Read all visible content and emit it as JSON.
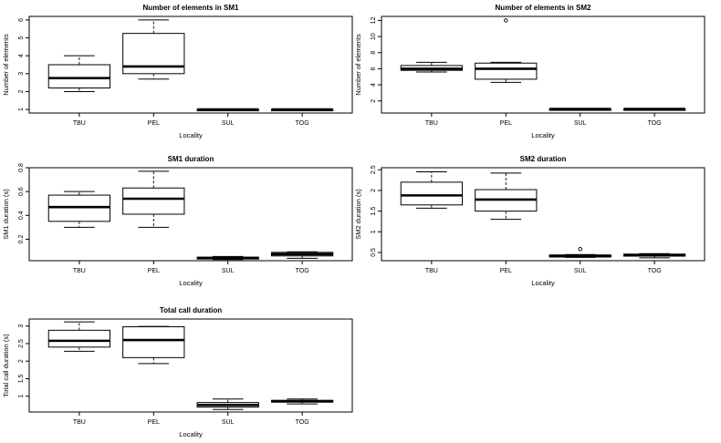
{
  "chart_data": [
    {
      "type": "boxplot",
      "title": "Number of elements in SM1",
      "xlabel": "Locality",
      "ylabel": "Number of elements",
      "categories": [
        "TBU",
        "PEL",
        "SUL",
        "TOG"
      ],
      "ylim": [
        0.8,
        6.2
      ],
      "yticks": [
        1,
        2,
        3,
        4,
        5,
        6
      ],
      "boxes": [
        {
          "min": 2.0,
          "q1": 2.2,
          "median": 2.75,
          "q3": 3.5,
          "max": 4.0,
          "outliers": []
        },
        {
          "min": 2.7,
          "q1": 3.0,
          "median": 3.4,
          "q3": 5.25,
          "max": 6.0,
          "outliers": []
        },
        {
          "min": 1.0,
          "q1": 1.0,
          "median": 1.0,
          "q3": 1.0,
          "max": 1.0,
          "outliers": []
        },
        {
          "min": 1.0,
          "q1": 1.0,
          "median": 1.0,
          "q3": 1.0,
          "max": 1.0,
          "outliers": []
        }
      ]
    },
    {
      "type": "boxplot",
      "title": "Number of elements in SM2",
      "xlabel": "Locality",
      "ylabel": "Number of elements",
      "categories": [
        "TBU",
        "PEL",
        "SUL",
        "TOG"
      ],
      "ylim": [
        0.5,
        12.5
      ],
      "yticks": [
        2,
        4,
        6,
        8,
        10,
        12
      ],
      "boxes": [
        {
          "min": 5.6,
          "q1": 5.8,
          "median": 6.0,
          "q3": 6.4,
          "max": 6.8,
          "outliers": []
        },
        {
          "min": 4.3,
          "q1": 4.7,
          "median": 6.0,
          "q3": 6.7,
          "max": 6.8,
          "outliers": [
            12
          ]
        },
        {
          "min": 1.0,
          "q1": 1.0,
          "median": 1.0,
          "q3": 1.0,
          "max": 1.0,
          "outliers": []
        },
        {
          "min": 1.0,
          "q1": 1.0,
          "median": 1.0,
          "q3": 1.0,
          "max": 1.0,
          "outliers": []
        }
      ]
    },
    {
      "type": "boxplot",
      "title": "SM1 duration",
      "xlabel": "Locality",
      "ylabel": "SM1 duration (s)",
      "categories": [
        "TBU",
        "PEL",
        "SUL",
        "TOG"
      ],
      "ylim": [
        0.02,
        0.8
      ],
      "yticks": [
        0.2,
        0.4,
        0.6,
        0.8
      ],
      "boxes": [
        {
          "min": 0.3,
          "q1": 0.35,
          "median": 0.47,
          "q3": 0.57,
          "max": 0.6,
          "outliers": []
        },
        {
          "min": 0.3,
          "q1": 0.41,
          "median": 0.54,
          "q3": 0.63,
          "max": 0.77,
          "outliers": []
        },
        {
          "min": 0.03,
          "q1": 0.035,
          "median": 0.04,
          "q3": 0.05,
          "max": 0.055,
          "outliers": []
        },
        {
          "min": 0.04,
          "q1": 0.06,
          "median": 0.075,
          "q3": 0.09,
          "max": 0.095,
          "outliers": []
        }
      ]
    },
    {
      "type": "boxplot",
      "title": "SM2 duration",
      "xlabel": "Locality",
      "ylabel": "SM2 duration (s)",
      "categories": [
        "TBU",
        "PEL",
        "SUL",
        "TOG"
      ],
      "ylim": [
        0.3,
        2.55
      ],
      "yticks": [
        0.5,
        1.0,
        1.5,
        2.0,
        2.5
      ],
      "boxes": [
        {
          "min": 1.57,
          "q1": 1.65,
          "median": 1.88,
          "q3": 2.2,
          "max": 2.45,
          "outliers": []
        },
        {
          "min": 1.3,
          "q1": 1.5,
          "median": 1.78,
          "q3": 2.02,
          "max": 2.42,
          "outliers": []
        },
        {
          "min": 0.38,
          "q1": 0.39,
          "median": 0.41,
          "q3": 0.44,
          "max": 0.45,
          "outliers": [
            0.58
          ]
        },
        {
          "min": 0.37,
          "q1": 0.41,
          "median": 0.43,
          "q3": 0.46,
          "max": 0.47,
          "outliers": []
        }
      ]
    },
    {
      "type": "boxplot",
      "title": "Total call duration",
      "xlabel": "Locality",
      "ylabel": "Total call duration (s)",
      "categories": [
        "TBU",
        "PEL",
        "SUL",
        "TOG"
      ],
      "ylim": [
        0.55,
        3.2
      ],
      "yticks": [
        1.0,
        1.5,
        2.0,
        2.5,
        3.0
      ],
      "boxes": [
        {
          "min": 2.28,
          "q1": 2.4,
          "median": 2.58,
          "q3": 2.88,
          "max": 3.12,
          "outliers": []
        },
        {
          "min": 1.93,
          "q1": 2.1,
          "median": 2.6,
          "q3": 2.98,
          "max": 2.99,
          "outliers": []
        },
        {
          "min": 0.62,
          "q1": 0.69,
          "median": 0.75,
          "q3": 0.82,
          "max": 0.92,
          "outliers": []
        },
        {
          "min": 0.78,
          "q1": 0.83,
          "median": 0.86,
          "q3": 0.88,
          "max": 0.92,
          "outliers": []
        }
      ]
    }
  ]
}
